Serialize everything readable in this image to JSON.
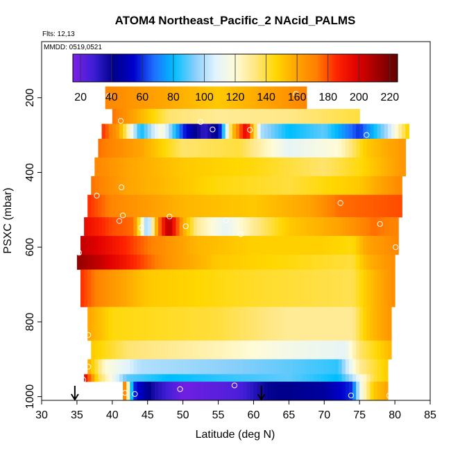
{
  "chart_data": {
    "type": "heatmap",
    "title": "ATOM4 Northeast_Pacific_2 NAcid_PALMS",
    "flights_text": "Flts: 12,13",
    "dates_text": "MMDD: 0519,0521",
    "xlabel": "Latitude (deg N)",
    "ylabel": "PSXC (mbar)",
    "xlim": [
      30,
      85
    ],
    "ylim": [
      1010,
      50
    ],
    "x_ticks": [
      30,
      35,
      40,
      45,
      50,
      55,
      60,
      65,
      70,
      75,
      80,
      85
    ],
    "y_ticks": [
      200,
      400,
      600,
      800,
      1000
    ],
    "colorbar": {
      "range": [
        15,
        225
      ],
      "ticks": [
        20,
        40,
        60,
        80,
        100,
        120,
        140,
        160,
        180,
        200,
        220
      ],
      "colors": [
        "#7f1fe6",
        "#3d1fd6",
        "#00008b",
        "#0000cd",
        "#1e6fff",
        "#00bfff",
        "#87cefa",
        "#e0f3ff",
        "#fffbd8",
        "#ffe680",
        "#ffd700",
        "#ffa500",
        "#ff7f00",
        "#ff2400",
        "#e00000",
        "#a00000",
        "#600000"
      ]
    },
    "bands": [
      {
        "p": [
          170,
          230
        ],
        "x": [
          39,
          67.5
        ],
        "stops": [
          [
            39,
            170
          ],
          [
            45,
            162
          ],
          [
            55,
            150
          ],
          [
            62,
            160
          ],
          [
            67.5,
            170
          ]
        ]
      },
      {
        "p": [
          230,
          270
        ],
        "x": [
          40,
          75
        ],
        "stops": [
          [
            40,
            175
          ],
          [
            43,
            160
          ],
          [
            48,
            135
          ],
          [
            55,
            130
          ],
          [
            65,
            132
          ],
          [
            75,
            140
          ]
        ]
      },
      {
        "p": [
          270,
          310
        ],
        "x": [
          38.5,
          82
        ],
        "stops": [
          [
            38.5,
            185
          ],
          [
            41,
            160
          ],
          [
            44,
            80
          ],
          [
            47,
            120
          ],
          [
            50,
            60
          ],
          [
            53,
            30
          ],
          [
            55,
            45
          ],
          [
            57,
            150
          ],
          [
            59,
            200
          ],
          [
            61,
            100
          ],
          [
            65,
            80
          ],
          [
            70,
            90
          ],
          [
            75,
            60
          ],
          [
            79,
            100
          ],
          [
            82,
            150
          ]
        ]
      },
      {
        "p": [
          310,
          360
        ],
        "x": [
          38,
          81.5
        ],
        "stops": [
          [
            38,
            175
          ],
          [
            44,
            160
          ],
          [
            50,
            135
          ],
          [
            58,
            140
          ],
          [
            65,
            110
          ],
          [
            72,
            120
          ],
          [
            76,
            150
          ],
          [
            81.5,
            165
          ]
        ]
      },
      {
        "p": [
          360,
          410
        ],
        "x": [
          37.5,
          81.5
        ],
        "stops": [
          [
            37.5,
            170
          ],
          [
            42,
            160
          ],
          [
            50,
            150
          ],
          [
            60,
            145
          ],
          [
            70,
            135
          ],
          [
            75,
            145
          ],
          [
            81.5,
            165
          ]
        ]
      },
      {
        "p": [
          410,
          460
        ],
        "x": [
          37,
          81
        ],
        "stops": [
          [
            37,
            175
          ],
          [
            42,
            160
          ],
          [
            55,
            145
          ],
          [
            65,
            140
          ],
          [
            75,
            150
          ],
          [
            81,
            170
          ]
        ]
      },
      {
        "p": [
          460,
          520
        ],
        "x": [
          36.5,
          81
        ],
        "stops": [
          [
            36.5,
            185
          ],
          [
            40,
            170
          ],
          [
            50,
            155
          ],
          [
            60,
            150
          ],
          [
            68,
            160
          ],
          [
            72,
            175
          ],
          [
            81,
            180
          ]
        ]
      },
      {
        "p": [
          520,
          570
        ],
        "x": [
          36,
          80.5
        ],
        "stops": [
          [
            36,
            195
          ],
          [
            40,
            180
          ],
          [
            43,
            175
          ],
          [
            45,
            90
          ],
          [
            46.5,
            170
          ],
          [
            48,
            210
          ],
          [
            50,
            160
          ],
          [
            52,
            130
          ],
          [
            56,
            110
          ],
          [
            60,
            130
          ],
          [
            65,
            150
          ],
          [
            72,
            160
          ],
          [
            77,
            175
          ],
          [
            80.5,
            170
          ]
        ]
      },
      {
        "p": [
          570,
          620
        ],
        "x": [
          35.5,
          80.5
        ],
        "stops": [
          [
            35.5,
            205
          ],
          [
            39,
            195
          ],
          [
            42,
            185
          ],
          [
            46,
            170
          ],
          [
            52,
            155
          ],
          [
            60,
            148
          ],
          [
            70,
            148
          ],
          [
            74,
            145
          ],
          [
            76,
            160
          ],
          [
            80.5,
            170
          ]
        ]
      },
      {
        "p": [
          620,
          660
        ],
        "x": [
          35,
          80
        ],
        "stops": [
          [
            35,
            215
          ],
          [
            38,
            205
          ],
          [
            42,
            190
          ],
          [
            48,
            165
          ],
          [
            55,
            150
          ],
          [
            65,
            145
          ],
          [
            74,
            140
          ],
          [
            76,
            155
          ],
          [
            80,
            168
          ]
        ]
      },
      {
        "p": [
          660,
          760
        ],
        "x": [
          35.5,
          80
        ],
        "stops": [
          [
            35.5,
            185
          ],
          [
            38,
            170
          ],
          [
            45,
            150
          ],
          [
            60,
            142
          ],
          [
            74,
            138
          ],
          [
            76,
            150
          ],
          [
            80,
            168
          ]
        ]
      },
      {
        "p": [
          760,
          850
        ],
        "x": [
          36.5,
          79.5
        ],
        "stops": [
          [
            36.5,
            160
          ],
          [
            40,
            145
          ],
          [
            55,
            140
          ],
          [
            65,
            130
          ],
          [
            74,
            130
          ],
          [
            76,
            150
          ],
          [
            79.5,
            165
          ]
        ]
      },
      {
        "p": [
          850,
          900
        ],
        "x": [
          37,
          79.5
        ],
        "stops": [
          [
            37,
            150
          ],
          [
            42,
            135
          ],
          [
            55,
            125
          ],
          [
            65,
            115
          ],
          [
            73,
            110
          ],
          [
            75,
            135
          ],
          [
            79.5,
            155
          ]
        ]
      },
      {
        "p": [
          900,
          940
        ],
        "x": [
          36.5,
          79
        ],
        "stops": [
          [
            36.5,
            160
          ],
          [
            39,
            120
          ],
          [
            44,
            100
          ],
          [
            55,
            95
          ],
          [
            65,
            90
          ],
          [
            72,
            85
          ],
          [
            75,
            130
          ],
          [
            79,
            150
          ]
        ]
      },
      {
        "p": [
          940,
          960
        ],
        "x": [
          36,
          79
        ],
        "stops": [
          [
            36,
            200
          ],
          [
            38,
            140
          ],
          [
            42,
            90
          ],
          [
            48,
            80
          ],
          [
            55,
            85
          ],
          [
            65,
            90
          ],
          [
            72,
            80
          ],
          [
            74,
            100
          ],
          [
            77,
            140
          ],
          [
            79,
            150
          ]
        ]
      },
      {
        "p": [
          960,
          1010
        ],
        "x": [
          41.5,
          79
        ],
        "stops": [
          [
            41.5,
            190
          ],
          [
            43,
            60
          ],
          [
            46,
            35
          ],
          [
            50,
            18
          ],
          [
            58,
            25
          ],
          [
            62,
            40
          ],
          [
            70,
            45
          ],
          [
            74,
            60
          ],
          [
            75,
            110
          ],
          [
            77,
            150
          ],
          [
            79,
            160
          ]
        ]
      }
    ],
    "points": [
      {
        "x": 39.5,
        "y": 195
      },
      {
        "x": 41.2,
        "y": 262
      },
      {
        "x": 66,
        "y": 190
      },
      {
        "x": 69.5,
        "y": 215
      },
      {
        "x": 52.5,
        "y": 265
      },
      {
        "x": 54.2,
        "y": 285
      },
      {
        "x": 59.5,
        "y": 286
      },
      {
        "x": 76,
        "y": 300
      },
      {
        "x": 37.8,
        "y": 462
      },
      {
        "x": 41.3,
        "y": 440
      },
      {
        "x": 72.3,
        "y": 482
      },
      {
        "x": 41.5,
        "y": 515
      },
      {
        "x": 41,
        "y": 530
      },
      {
        "x": 44.1,
        "y": 548
      },
      {
        "x": 48.1,
        "y": 518
      },
      {
        "x": 50.4,
        "y": 544
      },
      {
        "x": 56.1,
        "y": 528
      },
      {
        "x": 58.2,
        "y": 565
      },
      {
        "x": 77.9,
        "y": 538
      },
      {
        "x": 35.3,
        "y": 615
      },
      {
        "x": 80.1,
        "y": 600
      },
      {
        "x": 36.6,
        "y": 835
      },
      {
        "x": 36.6,
        "y": 920
      },
      {
        "x": 35.9,
        "y": 955
      },
      {
        "x": 57.3,
        "y": 970
      },
      {
        "x": 49.6,
        "y": 980
      },
      {
        "x": 41.8,
        "y": 990
      },
      {
        "x": 43.2,
        "y": 993
      },
      {
        "x": 73.8,
        "y": 997
      },
      {
        "x": 79.2,
        "y": 997
      }
    ],
    "markers": [
      {
        "x": 34.7,
        "type": "down-arrow"
      },
      {
        "x": 61.1,
        "type": "down-arrow"
      }
    ]
  }
}
